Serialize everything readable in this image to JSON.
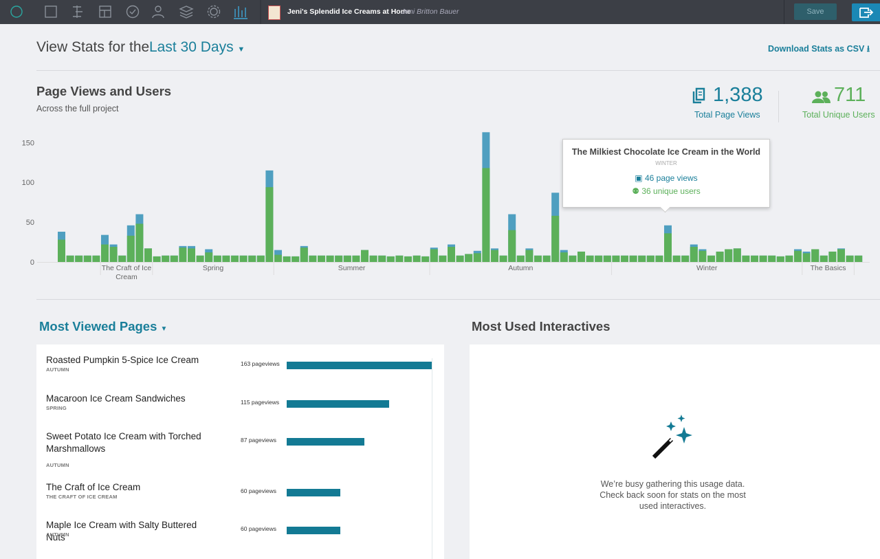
{
  "header": {
    "book_title": "Jeni's Splendid Ice Creams at Home",
    "author": "Jeni Britton Bauer",
    "save": "Save"
  },
  "stats_header": {
    "label": "View Stats for the",
    "range": "Last 30 Days",
    "download": "Download Stats as CSV"
  },
  "totals": {
    "page_views": "1,388",
    "unique_users": "711"
  },
  "chart_data": {
    "type": "bar",
    "title": "Page Views and Users",
    "subtitle": "Across the full project",
    "series": [
      {
        "name": "Total Page Views",
        "color": "#4f9fc0",
        "values": [
          38,
          8,
          8,
          8,
          8,
          34,
          22,
          8,
          46,
          60,
          17,
          7,
          8,
          8,
          20,
          20,
          8,
          16,
          8,
          8,
          8,
          8,
          8,
          8,
          115,
          15,
          7,
          7,
          20,
          8,
          8,
          8,
          8,
          8,
          8,
          15,
          8,
          8,
          7,
          8,
          7,
          8,
          7,
          18,
          8,
          22,
          8,
          10,
          14,
          163,
          17,
          8,
          60,
          8,
          17,
          8,
          8,
          87,
          15,
          8,
          13,
          8,
          8,
          8,
          8,
          8,
          8,
          8,
          8,
          8,
          46,
          8,
          8,
          22,
          16,
          8,
          13,
          16,
          17,
          8,
          8,
          8,
          8,
          7,
          8,
          16,
          13,
          16,
          8,
          13,
          17,
          8,
          8
        ]
      },
      {
        "name": "Total Unique Users",
        "color": "#5cb05a",
        "values": [
          28,
          8,
          8,
          8,
          8,
          22,
          19,
          8,
          33,
          48,
          17,
          7,
          8,
          8,
          18,
          17,
          8,
          12,
          8,
          8,
          8,
          8,
          8,
          8,
          94,
          9,
          7,
          7,
          18,
          8,
          8,
          8,
          8,
          8,
          8,
          15,
          8,
          8,
          7,
          8,
          7,
          8,
          7,
          16,
          8,
          19,
          8,
          10,
          11,
          118,
          15,
          8,
          40,
          8,
          15,
          8,
          8,
          58,
          12,
          8,
          13,
          8,
          8,
          8,
          8,
          8,
          8,
          8,
          8,
          8,
          36,
          8,
          8,
          19,
          14,
          8,
          13,
          16,
          17,
          8,
          8,
          8,
          8,
          7,
          8,
          14,
          11,
          16,
          8,
          13,
          16,
          8,
          8
        ]
      }
    ],
    "groups": [
      {
        "label": null,
        "count": 5
      },
      {
        "label": "The Craft of Ice Cream",
        "count": 6
      },
      {
        "label": "Spring",
        "count": 14
      },
      {
        "label": "Summer",
        "count": 18
      },
      {
        "label": "Autumn",
        "count": 21
      },
      {
        "label": "Winter",
        "count": 22
      },
      {
        "label": "The Basics",
        "count": 6
      },
      {
        "label": null,
        "count": 1
      }
    ],
    "ylim": [
      0,
      165
    ],
    "yticks": [
      0,
      50,
      100,
      150
    ],
    "grid": false,
    "tooltip": {
      "title": "The Milkiest Chocolate Ice Cream in the World",
      "section": "WINTER",
      "page_views": "46 page views",
      "users": "36 unique users"
    }
  },
  "most_viewed": {
    "title": "Most Viewed Pages",
    "pages": [
      {
        "title": "Roasted Pumpkin 5-Spice Ice Cream",
        "section": "AUTUMN"
      },
      {
        "title": "Macaroon Ice Cream Sandwiches",
        "section": "SPRING"
      },
      {
        "title": "Sweet Potato Ice Cream with Torched Marshmallows",
        "section": "AUTUMN"
      },
      {
        "title": "The Craft of Ice Cream",
        "section": "THE CRAFT OF ICE CREAM"
      },
      {
        "title": "Maple Ice Cream with Salty Buttered Nuts",
        "section": "AUTUMN"
      }
    ],
    "values": [
      163,
      115,
      87,
      60,
      60
    ],
    "value_labels": [
      "163 pageviews",
      "115 pageviews",
      "87 pageviews",
      "60 pageviews",
      "60 pageviews"
    ],
    "color": "#137a94"
  },
  "interactives": {
    "title": "Most Used Interactives",
    "message": "We’re busy gathering this usage data. Check back soon for stats on the most used interactives."
  }
}
